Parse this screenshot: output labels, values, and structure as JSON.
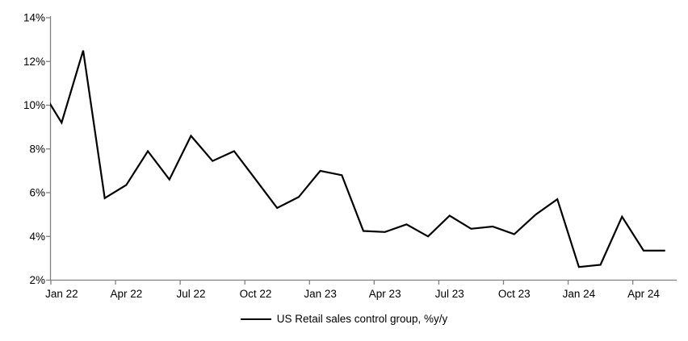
{
  "chart": {
    "legend_label": "US Retail sales control group, %y/y",
    "line_color": "#000000",
    "axis_color": "#808080",
    "text_color": "#000000",
    "background_color": "#ffffff"
  },
  "chart_data": {
    "type": "line",
    "title": "",
    "xlabel": "",
    "ylabel": "",
    "grid": false,
    "legend_position": "bottom-center",
    "ylim": [
      2,
      14
    ],
    "y_tick_step": 2,
    "y_tick_labels": [
      "2%",
      "4%",
      "6%",
      "8%",
      "10%",
      "12%",
      "14%"
    ],
    "x_tick_labels": [
      "Jan 22",
      "Apr 22",
      "Jul 22",
      "Oct 22",
      "Jan 23",
      "Apr 23",
      "Jul 23",
      "Oct 23",
      "Jan 24",
      "Apr 24"
    ],
    "x": [
      "Jan 22",
      "Feb 22",
      "Mar 22",
      "Apr 22",
      "May 22",
      "Jun 22",
      "Jul 22",
      "Aug 22",
      "Sep 22",
      "Oct 22",
      "Nov 22",
      "Dec 22",
      "Jan 23",
      "Feb 23",
      "Mar 23",
      "Apr 23",
      "May 23",
      "Jun 23",
      "Jul 23",
      "Aug 23",
      "Sep 23",
      "Oct 23",
      "Nov 23",
      "Dec 23",
      "Jan 24",
      "Feb 24",
      "Mar 24",
      "Apr 24",
      "May 24"
    ],
    "series": [
      {
        "name": "US Retail sales control group, %y/y",
        "values": [
          9.2,
          12.5,
          5.75,
          6.35,
          7.9,
          6.6,
          8.6,
          7.45,
          7.9,
          6.6,
          5.3,
          5.8,
          7.0,
          6.8,
          4.25,
          4.2,
          4.55,
          4.0,
          4.95,
          4.35,
          4.45,
          4.1,
          5.0,
          5.7,
          2.6,
          2.7,
          4.9,
          3.35,
          3.35
        ]
      }
    ],
    "clipped_prior_point": {
      "value": 10.8,
      "note": "line enters plot at left axis at ~10%"
    }
  }
}
